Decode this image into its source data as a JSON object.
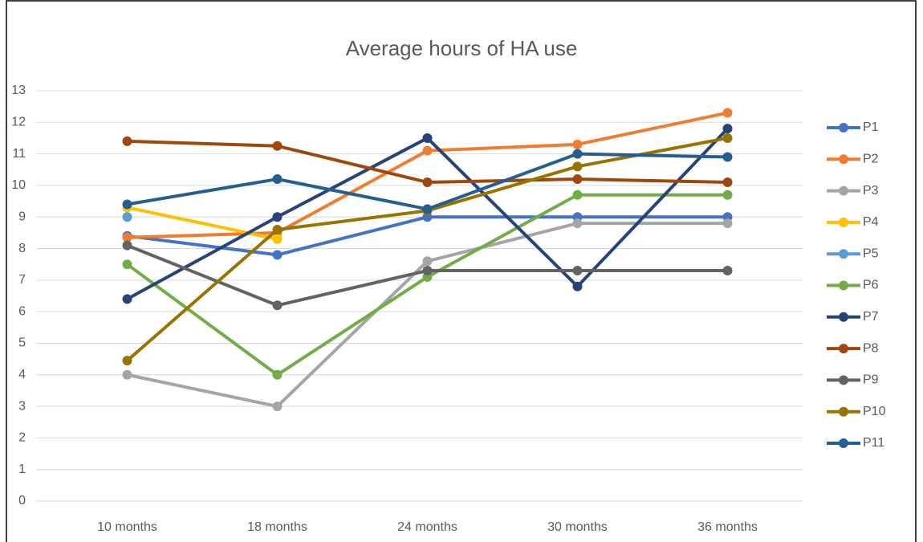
{
  "chart_data": {
    "type": "line",
    "title": "Average hours of HA use",
    "categories": [
      "10 months",
      "18 months",
      "24 months",
      "30 months",
      "36 months"
    ],
    "ylim": [
      0,
      13
    ],
    "yticks": [
      0,
      1,
      2,
      3,
      4,
      5,
      6,
      7,
      8,
      9,
      10,
      11,
      12,
      13
    ],
    "grid": true,
    "legend": "right",
    "series": [
      {
        "name": "P1",
        "color": "#4472c4",
        "values": [
          8.4,
          7.8,
          9.0,
          9.0,
          9.0
        ]
      },
      {
        "name": "P2",
        "color": "#ed7d31",
        "values": [
          8.35,
          8.5,
          11.1,
          11.3,
          12.3
        ]
      },
      {
        "name": "P3",
        "color": "#a5a5a5",
        "values": [
          4.0,
          3.0,
          7.6,
          8.8,
          8.8
        ]
      },
      {
        "name": "P4",
        "color": "#ffc000",
        "values": [
          9.3,
          8.3,
          null,
          null,
          null
        ]
      },
      {
        "name": "P5",
        "color": "#5b9bd5",
        "values": [
          9.0,
          null,
          null,
          null,
          null
        ]
      },
      {
        "name": "P6",
        "color": "#70ad47",
        "values": [
          7.5,
          4.0,
          7.1,
          9.7,
          9.7
        ]
      },
      {
        "name": "P7",
        "color": "#264478",
        "values": [
          6.4,
          9.0,
          11.5,
          6.8,
          11.8
        ]
      },
      {
        "name": "P8",
        "color": "#9e480e",
        "values": [
          11.4,
          11.25,
          10.1,
          10.2,
          10.1
        ]
      },
      {
        "name": "P9",
        "color": "#636363",
        "values": [
          8.1,
          6.2,
          7.3,
          7.3,
          7.3
        ]
      },
      {
        "name": "P10",
        "color": "#997300",
        "values": [
          4.45,
          8.6,
          9.2,
          10.6,
          11.5
        ]
      },
      {
        "name": "P11",
        "color": "#255e91",
        "values": [
          9.4,
          10.2,
          9.25,
          11.0,
          10.9
        ]
      }
    ]
  }
}
